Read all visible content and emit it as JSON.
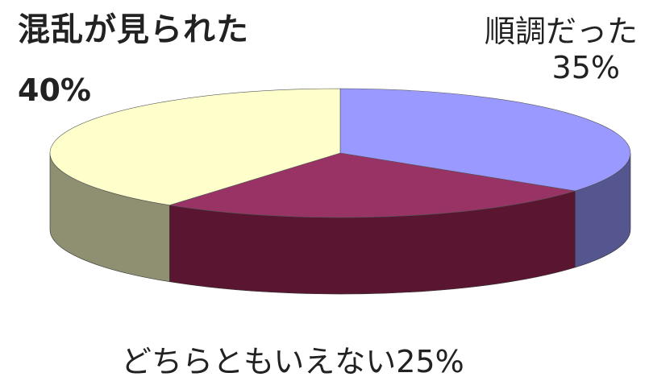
{
  "chart_data": {
    "type": "pie",
    "style": "3d-tilted",
    "slices": [
      {
        "label": "混乱が見られた",
        "value": 40,
        "value_label": "40%",
        "color": "#FFFFCC",
        "side_color": "#8F8F72"
      },
      {
        "label": "順調だった",
        "value": 35,
        "value_label": "35%",
        "color": "#9999FF",
        "side_color": "#55558F"
      },
      {
        "label": "どちらともいえない",
        "value": 25,
        "value_label": "25%",
        "color": "#993366",
        "side_color": "#5A1530"
      }
    ],
    "legend": "none"
  }
}
